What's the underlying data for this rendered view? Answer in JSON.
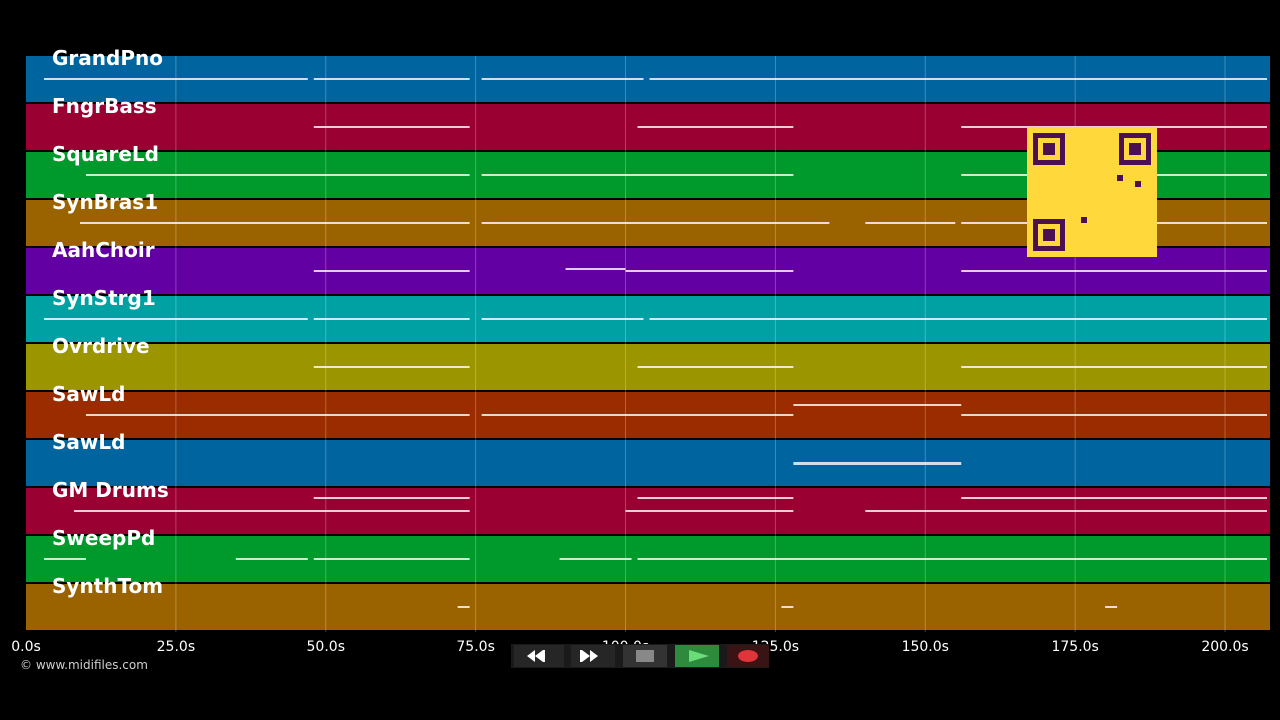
{
  "tracks": [
    {
      "name": "GrandPno",
      "color": "#00659e"
    },
    {
      "name": "FngrBass",
      "color": "#9b0033"
    },
    {
      "name": "SquareLd",
      "color": "#009a2c"
    },
    {
      "name": "SynBras1",
      "color": "#9b6300"
    },
    {
      "name": "AahChoir",
      "color": "#6300a3"
    },
    {
      "name": "SynStrg1",
      "color": "#00a1a3"
    },
    {
      "name": "Ovrdrive",
      "color": "#9b9500"
    },
    {
      "name": "SawLd",
      "color": "#9b2c00"
    },
    {
      "name": "SawLd",
      "color": "#00659e"
    },
    {
      "name": "GM Drums",
      "color": "#9b0033"
    },
    {
      "name": "SweepPd",
      "color": "#009a2c"
    },
    {
      "name": "SynthTom",
      "color": "#9b6300"
    }
  ],
  "timeline": {
    "min": 0,
    "max": 207.5,
    "ticks": [
      "0.0s",
      "25.0s",
      "50.0s",
      "75.0s",
      "100.0s",
      "125.0s",
      "150.0s",
      "175.0s",
      "200.0s"
    ]
  },
  "copyright": "© www.midifiles.com",
  "transport": {
    "rewind_icon": "rewind-icon",
    "fast_forward_icon": "fast-forward-icon",
    "stop_icon": "stop-icon",
    "play_icon": "play-icon",
    "record_icon": "record-icon",
    "play_color": "#2e8b3e",
    "record_color": "#e0333a"
  },
  "overlay": {
    "qr_color": "#ffd93b",
    "qr_module_color": "#4a1050"
  }
}
